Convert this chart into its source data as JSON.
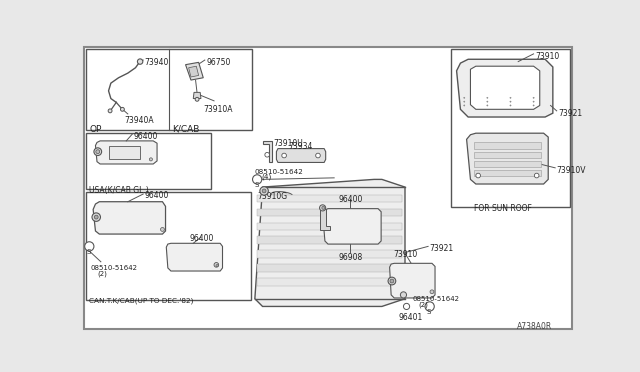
{
  "bg_color": "#e8e8e8",
  "line_color": "#555555",
  "dark_line": "#333333",
  "fill_visor": "#f0f0f0",
  "fill_light": "#f8f8f8",
  "diagram_code": "A738A0R",
  "parts": {
    "p73940": "73940",
    "p73940A": "73940A",
    "p96750": "96750",
    "p73910A": "73910A",
    "p96400": "96400",
    "p96908": "96908",
    "p73910U": "73910U",
    "p73934": "73934",
    "p08510_4": "08510-51642",
    "p08510_4b": "(4)",
    "p73910G": "73910G",
    "p73910": "73910",
    "p73921": "73921",
    "p73910V": "73910V",
    "p96401": "96401",
    "p08510_2": "08510-51642",
    "p08510_2b": "(2)",
    "lOP": "OP",
    "lKCAB": "K/CAB",
    "lUSA": "USA(K/CAB GL.)",
    "lCAN": "CAN.T.K/CAB(UP TO DEC.'82)",
    "lSUNROOF": "FOR SUN ROOF"
  }
}
